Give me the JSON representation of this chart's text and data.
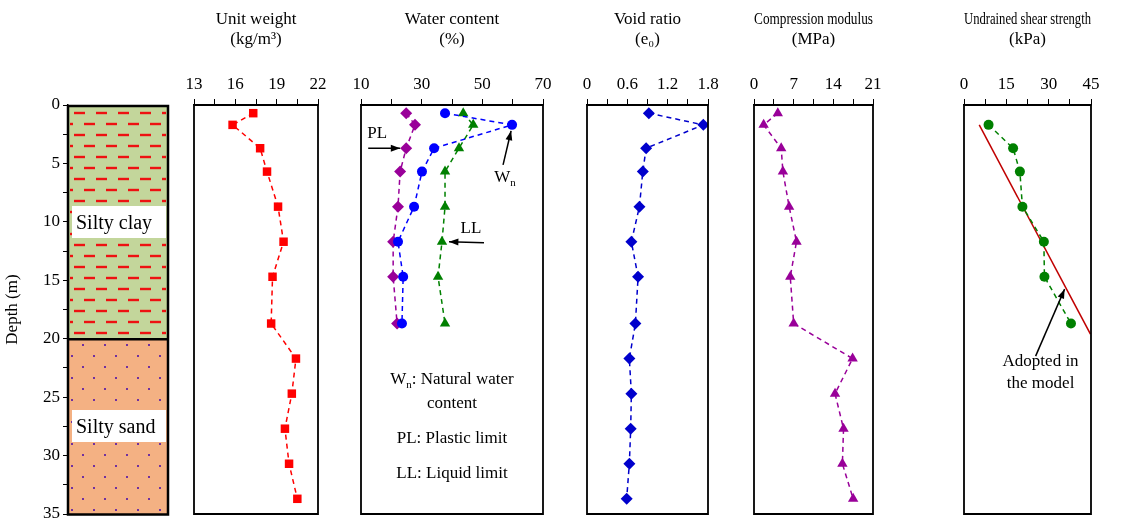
{
  "chart_data": [
    {
      "type": "bar",
      "stacked": true,
      "categories": [
        null
      ],
      "ylabel": "Depth (m)",
      "ylim": [
        35,
        0
      ],
      "yticks": [
        0,
        {
          "value": 2.5,
          "label": null
        },
        5,
        {
          "value": 7.5,
          "label": null
        },
        10,
        {
          "value": 12.5,
          "label": null
        },
        15,
        {
          "value": 17.5,
          "label": null
        },
        20,
        {
          "value": 22.5,
          "label": null
        },
        25,
        {
          "value": 27.5,
          "label": null
        },
        30,
        {
          "value": 32.5,
          "label": null
        },
        35
      ],
      "tick_labels": "y",
      "series": [
        {
          "name": "Silty clay",
          "color": "#c3d69b",
          "values": [
            20
          ]
        },
        {
          "name": "Silty sand",
          "color": "#f4b183",
          "values": [
            15
          ]
        }
      ]
    },
    {
      "type": "line",
      "xlabel": "Unit weight (kg/m³)",
      "xlim": [
        13,
        22
      ],
      "xticks": [
        13,
        {
          "value": 14.5,
          "label": null
        },
        16,
        {
          "value": 17.5,
          "label": null
        },
        19,
        {
          "value": 20.5,
          "label": null
        },
        22
      ],
      "ylim": [
        35,
        0
      ],
      "tick_labels": "x",
      "series": [
        {
          "color": "#ff0000",
          "marker": "square",
          "line_style": "dashed",
          "x": [
            17.3,
            15.8,
            17.8,
            18.3,
            19.1,
            19.5,
            18.7,
            18.6,
            20.4,
            20.1,
            19.6,
            19.9,
            20.5
          ],
          "values": [
            0.7,
            1.7,
            3.7,
            5.7,
            8.7,
            11.7,
            14.7,
            18.7,
            21.7,
            24.7,
            27.7,
            30.7,
            33.7
          ]
        }
      ]
    },
    {
      "type": "line",
      "xlabel": "Water content (%)",
      "xlim": [
        10,
        70
      ],
      "xticks": [
        10,
        {
          "value": 20,
          "label": null
        },
        30,
        {
          "value": 40,
          "label": null
        },
        50,
        {
          "value": 60,
          "label": null
        },
        70
      ],
      "ylim": [
        35,
        0
      ],
      "tick_labels": "x",
      "series": [
        {
          "color": "#0000ff",
          "marker": "circle",
          "line_style": "dashed",
          "x": [
            37.7,
            59.8,
            34.1,
            30.1,
            27.5,
            22.2,
            23.9,
            23.5
          ],
          "values": [
            0.7,
            1.7,
            3.7,
            5.7,
            8.7,
            11.7,
            14.7,
            18.7
          ]
        },
        {
          "color": "#008000",
          "marker": "triangle",
          "line_style": "dashed",
          "x": [
            43.7,
            47,
            42.3,
            37.7,
            37.7,
            36.7,
            35.4,
            37.7
          ],
          "values": [
            0.7,
            1.7,
            3.7,
            5.7,
            8.7,
            11.7,
            14.7,
            18.7
          ]
        },
        {
          "color": "#990099",
          "marker": "diamond",
          "line_style": "dashed",
          "x": [
            24.9,
            27.8,
            24.9,
            22.9,
            22.2,
            20.6,
            20.6,
            21.9
          ],
          "values": [
            0.7,
            1.7,
            3.7,
            5.7,
            8.7,
            11.7,
            14.7,
            18.7
          ]
        }
      ],
      "annotations": [
        {
          "text": "PL",
          "x": 24.9,
          "y": 3.7
        },
        {
          "text": "W$_{n}$",
          "x": 59.8,
          "y": 1.7
        },
        {
          "text": "LL",
          "x": 36.7,
          "y": 11.7
        },
        "W$_{n}$: Natural water content",
        "PL: Plastic limit",
        "LL: Liquid limit"
      ]
    },
    {
      "type": "line",
      "xlabel": "Void ratio (e₀)",
      "xlim": [
        0,
        1.8
      ],
      "xticks": [
        0,
        {
          "value": 0.3,
          "label": null
        },
        0.6,
        {
          "value": 0.9,
          "label": null
        },
        1.2,
        {
          "value": 1.5,
          "label": null
        },
        1.8
      ],
      "ylim": [
        35,
        0
      ],
      "tick_labels": "x",
      "series": [
        {
          "color": "#0000cc",
          "marker": "diamond",
          "line_style": "dashed",
          "x": [
            0.92,
            1.73,
            0.88,
            0.83,
            0.78,
            0.66,
            0.76,
            0.72,
            0.63,
            0.66,
            0.65,
            0.63,
            0.59
          ],
          "values": [
            0.7,
            1.7,
            3.7,
            5.7,
            8.7,
            11.7,
            14.7,
            18.7,
            21.7,
            24.7,
            27.7,
            30.7,
            33.7
          ]
        }
      ]
    },
    {
      "type": "line",
      "xlabel": "Compression modulus (MPa)",
      "xlim": [
        0,
        21
      ],
      "xticks": [
        0,
        {
          "value": 3.5,
          "label": null
        },
        7,
        {
          "value": 10.5,
          "label": null
        },
        14,
        {
          "value": 17.5,
          "label": null
        },
        21
      ],
      "ylim": [
        35,
        0
      ],
      "tick_labels": "x",
      "series": [
        {
          "color": "#990099",
          "marker": "triangle",
          "line_style": "dashed",
          "x": [
            4.2,
            1.7,
            4.8,
            5.1,
            6.2,
            7.5,
            6.4,
            7.0,
            17.4,
            14.3,
            15.8,
            15.6,
            17.5
          ],
          "values": [
            0.7,
            1.7,
            3.7,
            5.7,
            8.7,
            11.7,
            14.7,
            18.7,
            21.7,
            24.7,
            27.7,
            30.7,
            33.7
          ]
        }
      ]
    },
    {
      "type": "line",
      "xlabel": "Undrained shear strength (kPa)",
      "xlim": [
        0,
        45
      ],
      "xticks": [
        0,
        {
          "value": 7.5,
          "label": null
        },
        15,
        {
          "value": 22.5,
          "label": null
        },
        30,
        {
          "value": 37.5,
          "label": null
        },
        45
      ],
      "ylim": [
        35,
        0
      ],
      "tick_labels": "x",
      "series": [
        {
          "color": "#008000",
          "marker": "circle",
          "line_style": "dashed",
          "x": [
            8.7,
            17.4,
            19.8,
            20.7,
            28.3,
            28.5,
            37.9
          ],
          "values": [
            1.7,
            3.7,
            5.7,
            8.7,
            11.7,
            14.7,
            18.7
          ]
        },
        {
          "color": "#c00000",
          "marker": "none",
          "line_style": "solid",
          "x": [
            5.4,
            44.8
          ],
          "values": [
            1.7,
            19.6
          ]
        }
      ],
      "annotations": [
        {
          "text": "Adopted in the model",
          "x": 36,
          "y": 15.5
        }
      ]
    }
  ]
}
